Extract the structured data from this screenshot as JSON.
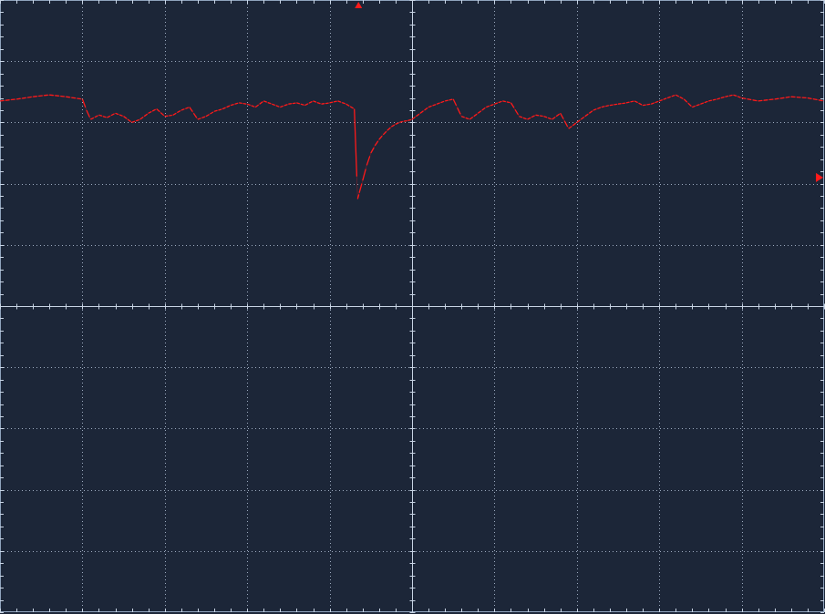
{
  "chart_data": {
    "type": "line",
    "title": "",
    "xlabel": "",
    "ylabel": "",
    "xlim": [
      -5,
      5
    ],
    "ylim": [
      -5,
      5
    ],
    "grid": true,
    "legend": "none",
    "x_divisions": 10,
    "y_divisions": 10,
    "minor_ticks_per_division": 5,
    "trigger_time_marker": -0.65,
    "trigger_level_marker": 2.1,
    "series": [
      {
        "color": "#ff1a1a",
        "x": [
          -5.0,
          -4.8,
          -4.6,
          -4.4,
          -4.2,
          -4.0,
          -3.95,
          -3.9,
          -3.8,
          -3.7,
          -3.6,
          -3.5,
          -3.4,
          -3.3,
          -3.2,
          -3.1,
          -3.0,
          -2.9,
          -2.8,
          -2.7,
          -2.6,
          -2.5,
          -2.4,
          -2.3,
          -2.2,
          -2.1,
          -2.0,
          -1.9,
          -1.8,
          -1.7,
          -1.6,
          -1.5,
          -1.4,
          -1.3,
          -1.2,
          -1.1,
          -1.0,
          -0.9,
          -0.8,
          -0.7,
          -0.66,
          -0.64,
          -0.6,
          -0.55,
          -0.5,
          -0.45,
          -0.4,
          -0.35,
          -0.3,
          -0.25,
          -0.2,
          -0.15,
          -0.1,
          -0.05,
          0.0,
          0.1,
          0.2,
          0.3,
          0.4,
          0.5,
          0.6,
          0.7,
          0.8,
          0.9,
          1.0,
          1.1,
          1.2,
          1.3,
          1.4,
          1.5,
          1.6,
          1.7,
          1.8,
          1.9,
          2.0,
          2.1,
          2.2,
          2.3,
          2.4,
          2.5,
          2.6,
          2.7,
          2.8,
          2.9,
          3.0,
          3.1,
          3.2,
          3.3,
          3.4,
          3.5,
          3.6,
          3.7,
          3.8,
          3.9,
          4.0,
          4.2,
          4.4,
          4.6,
          4.8,
          5.0
        ],
        "y": [
          3.35,
          3.38,
          3.42,
          3.45,
          3.42,
          3.38,
          3.2,
          3.05,
          3.12,
          3.08,
          3.15,
          3.1,
          3.0,
          3.05,
          3.15,
          3.22,
          3.1,
          3.12,
          3.2,
          3.25,
          3.05,
          3.1,
          3.18,
          3.22,
          3.28,
          3.32,
          3.3,
          3.25,
          3.35,
          3.3,
          3.25,
          3.3,
          3.32,
          3.28,
          3.35,
          3.3,
          3.32,
          3.35,
          3.3,
          3.22,
          1.75,
          1.85,
          2.05,
          2.3,
          2.5,
          2.62,
          2.72,
          2.8,
          2.87,
          2.93,
          2.97,
          3.0,
          3.02,
          3.03,
          3.05,
          3.15,
          3.25,
          3.3,
          3.35,
          3.38,
          3.1,
          3.05,
          3.15,
          3.25,
          3.3,
          3.35,
          3.32,
          3.1,
          3.05,
          3.12,
          3.1,
          3.05,
          3.15,
          2.9,
          3.0,
          3.1,
          3.2,
          3.25,
          3.28,
          3.3,
          3.32,
          3.35,
          3.28,
          3.3,
          3.35,
          3.4,
          3.45,
          3.38,
          3.25,
          3.3,
          3.35,
          3.38,
          3.42,
          3.45,
          3.4,
          3.35,
          3.38,
          3.42,
          3.4,
          3.35
        ]
      }
    ]
  }
}
